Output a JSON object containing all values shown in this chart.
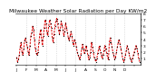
{
  "title": "Milwaukee Weather Solar Radiation per Day KW/m2",
  "background_color": "#ffffff",
  "line_color": "#dd0000",
  "marker_color": "#000000",
  "grid_color": "#c0c0c0",
  "ylim": [
    0,
    8
  ],
  "yticks_right": [
    1,
    2,
    3,
    4,
    5,
    6,
    7,
    8
  ],
  "ytick_labels": [
    "1",
    "2",
    "3",
    "4",
    "5",
    "6",
    "7",
    "8"
  ],
  "values": [
    1.2,
    0.5,
    0.8,
    1.5,
    2.8,
    3.5,
    2.0,
    1.5,
    2.5,
    3.8,
    4.2,
    3.5,
    2.8,
    2.0,
    1.5,
    3.0,
    4.5,
    5.0,
    6.0,
    5.5,
    4.0,
    2.5,
    1.8,
    1.5,
    2.0,
    3.5,
    4.8,
    5.5,
    4.0,
    3.0,
    4.5,
    5.8,
    7.0,
    6.5,
    5.0,
    4.5,
    6.0,
    7.0,
    6.5,
    5.8,
    4.2,
    3.5,
    4.8,
    6.0,
    6.8,
    7.2,
    6.5,
    5.5,
    4.8,
    5.5,
    6.8,
    6.2,
    5.5,
    4.5,
    5.2,
    6.5,
    5.8,
    5.0,
    4.2,
    3.8,
    4.5,
    5.2,
    4.5,
    3.5,
    3.0,
    4.0,
    3.5,
    2.8,
    2.0,
    1.5,
    1.2,
    0.8,
    1.5,
    2.5,
    3.2,
    2.5,
    1.8,
    2.2,
    3.0,
    2.2,
    1.5,
    0.8,
    1.2,
    2.0,
    3.5,
    2.8,
    2.0,
    1.2,
    0.8,
    0.5,
    1.0,
    1.8,
    2.5,
    3.0,
    2.0,
    1.5,
    1.0,
    1.5,
    2.2,
    3.0,
    2.5,
    1.8,
    1.2,
    0.8,
    3.5,
    4.2,
    3.5,
    2.8,
    2.0,
    1.5,
    0.8,
    1.2,
    2.0,
    2.8,
    3.5,
    4.0,
    3.2,
    2.5,
    1.8,
    1.0,
    0.5,
    0.8,
    1.5,
    2.2,
    3.0,
    2.5,
    1.8,
    1.2,
    0.8,
    0.5,
    1.0,
    1.5,
    2.0,
    2.5,
    3.0,
    2.5,
    1.8,
    1.0,
    0.5
  ],
  "month_positions": [
    0,
    11,
    22,
    33,
    44,
    55,
    66,
    77,
    88,
    99,
    110,
    121,
    132
  ],
  "month_labels": [
    "J",
    "F",
    "M",
    "A",
    "M",
    "J",
    "J",
    "A",
    "S",
    "O",
    "N",
    "D",
    ""
  ],
  "title_fontsize": 4.2,
  "tick_fontsize": 3.2,
  "line_width": 0.7
}
